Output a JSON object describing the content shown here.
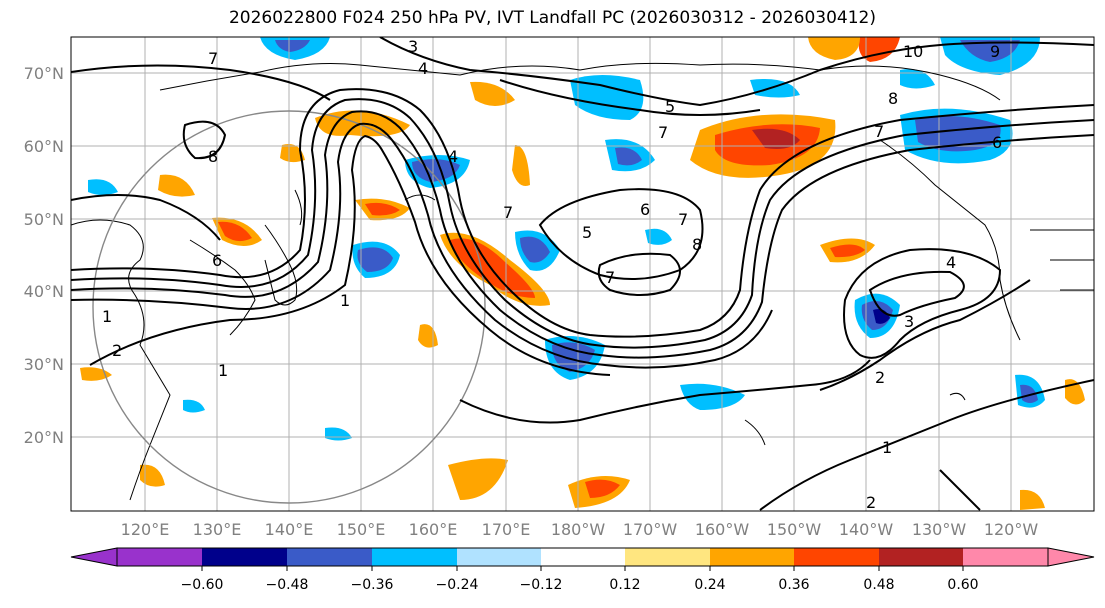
{
  "title": "2026022800 F024 250 hPa PV, IVT Landfall PC (2026030312 - 2026030412)",
  "lat_labels": [
    "70°N",
    "60°N",
    "50°N",
    "40°N",
    "30°N",
    "20°N"
  ],
  "lon_labels": [
    "120°E",
    "130°E",
    "140°E",
    "150°E",
    "160°E",
    "170°E",
    "180°W",
    "170°W",
    "160°W",
    "150°W",
    "140°W",
    "130°W",
    "120°W"
  ],
  "colorbar": {
    "ticks": [
      "−0.60",
      "−0.48",
      "−0.36",
      "−0.24",
      "−0.12",
      "0.12",
      "0.24",
      "0.36",
      "0.48",
      "0.60"
    ],
    "colors": [
      "#9932CC",
      "#00008B",
      "#3A5BC8",
      "#00BFFF",
      "#B0E2FF",
      "#FFFFFF",
      "#FFE680",
      "#FFA500",
      "#FF4500",
      "#B22222",
      "#FF88AA"
    ]
  },
  "contour_labels": [
    "1",
    "2",
    "3",
    "4",
    "5",
    "6",
    "7",
    "8",
    "9",
    "10"
  ],
  "palette": {
    "dark_blue": "#00008B",
    "blue": "#3A5BC8",
    "sky": "#00BFFF",
    "orange": "#FFA500",
    "red_orange": "#FF4500",
    "dark_red": "#B22222",
    "grid": "#B0B0B0",
    "ring": "#888888"
  }
}
